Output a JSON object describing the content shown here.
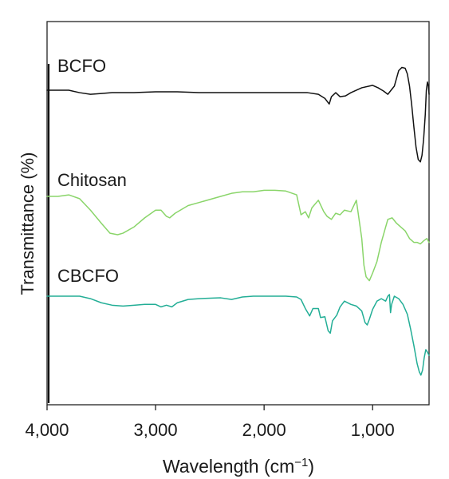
{
  "chart_data": {
    "type": "line",
    "title": "",
    "xlabel": "Wavelength (cm",
    "xlabel_superscript": "−1",
    "xlabel_suffix": ")",
    "ylabel": "Transmittance (%)",
    "x_reversed": true,
    "xlim": [
      4000,
      480
    ],
    "x_ticks": [
      4000,
      3000,
      2000,
      1000
    ],
    "x_tick_labels": [
      "4,000",
      "3,000",
      "2,000",
      "1,000"
    ],
    "y_ticks_shown": false,
    "grid": false,
    "legend": "inline labels",
    "series": [
      {
        "name": "BCFO",
        "color": "#111111",
        "points": [
          [
            4000,
            0.0
          ],
          [
            3900,
            0.0
          ],
          [
            3800,
            0.0
          ],
          [
            3700,
            0.3
          ],
          [
            3600,
            0.5
          ],
          [
            3500,
            0.4
          ],
          [
            3400,
            0.3
          ],
          [
            3200,
            0.3
          ],
          [
            3000,
            0.2
          ],
          [
            2800,
            0.2
          ],
          [
            2600,
            0.3
          ],
          [
            2400,
            0.3
          ],
          [
            2200,
            0.3
          ],
          [
            2000,
            0.3
          ],
          [
            1800,
            0.3
          ],
          [
            1700,
            0.3
          ],
          [
            1600,
            0.3
          ],
          [
            1500,
            0.5
          ],
          [
            1440,
            1.0
          ],
          [
            1400,
            1.7
          ],
          [
            1380,
            0.8
          ],
          [
            1340,
            0.3
          ],
          [
            1300,
            0.8
          ],
          [
            1250,
            0.7
          ],
          [
            1200,
            0.3
          ],
          [
            1100,
            -0.3
          ],
          [
            1000,
            -0.6
          ],
          [
            950,
            -0.3
          ],
          [
            900,
            0.1
          ],
          [
            860,
            0.5
          ],
          [
            800,
            -0.5
          ],
          [
            760,
            -2.4
          ],
          [
            730,
            -2.8
          ],
          [
            700,
            -2.7
          ],
          [
            680,
            -2.0
          ],
          [
            660,
            -0.5
          ],
          [
            640,
            1.8
          ],
          [
            620,
            4.5
          ],
          [
            600,
            7.0
          ],
          [
            580,
            8.5
          ],
          [
            560,
            8.8
          ],
          [
            545,
            8.0
          ],
          [
            530,
            6.0
          ],
          [
            515,
            3.0
          ],
          [
            505,
            0.0
          ],
          [
            495,
            -1.0
          ],
          [
            486,
            -0.5
          ],
          [
            480,
            0.5
          ]
        ]
      },
      {
        "name": "Chitosan",
        "color": "#8ad56a",
        "points": [
          [
            4000,
            0.0
          ],
          [
            3900,
            0.0
          ],
          [
            3800,
            -0.2
          ],
          [
            3700,
            0.3
          ],
          [
            3600,
            1.8
          ],
          [
            3500,
            3.5
          ],
          [
            3420,
            4.8
          ],
          [
            3350,
            5.0
          ],
          [
            3300,
            4.8
          ],
          [
            3200,
            4.0
          ],
          [
            3100,
            2.8
          ],
          [
            3000,
            1.8
          ],
          [
            2950,
            1.8
          ],
          [
            2900,
            2.6
          ],
          [
            2870,
            2.8
          ],
          [
            2820,
            2.2
          ],
          [
            2700,
            1.2
          ],
          [
            2600,
            0.8
          ],
          [
            2400,
            0.0
          ],
          [
            2300,
            -0.4
          ],
          [
            2200,
            -0.6
          ],
          [
            2100,
            -0.6
          ],
          [
            2000,
            -0.8
          ],
          [
            1900,
            -0.8
          ],
          [
            1800,
            -0.7
          ],
          [
            1700,
            -0.2
          ],
          [
            1660,
            2.4
          ],
          [
            1620,
            2.0
          ],
          [
            1590,
            2.8
          ],
          [
            1560,
            1.5
          ],
          [
            1500,
            0.5
          ],
          [
            1450,
            2.0
          ],
          [
            1420,
            2.6
          ],
          [
            1380,
            3.0
          ],
          [
            1340,
            2.2
          ],
          [
            1300,
            2.4
          ],
          [
            1260,
            1.8
          ],
          [
            1200,
            2.0
          ],
          [
            1150,
            0.5
          ],
          [
            1130,
            2.5
          ],
          [
            1100,
            5.5
          ],
          [
            1080,
            9.0
          ],
          [
            1060,
            10.5
          ],
          [
            1030,
            11.0
          ],
          [
            1000,
            10.0
          ],
          [
            960,
            8.5
          ],
          [
            920,
            6.0
          ],
          [
            890,
            4.5
          ],
          [
            860,
            3.0
          ],
          [
            820,
            2.8
          ],
          [
            780,
            3.5
          ],
          [
            740,
            4.0
          ],
          [
            700,
            4.5
          ],
          [
            660,
            5.5
          ],
          [
            620,
            6.0
          ],
          [
            590,
            6.0
          ],
          [
            560,
            6.2
          ],
          [
            530,
            5.8
          ],
          [
            500,
            5.5
          ],
          [
            480,
            6.0
          ]
        ]
      },
      {
        "name": "CBCFO",
        "color": "#23ae96",
        "points": [
          [
            4000,
            0.0
          ],
          [
            3900,
            0.0
          ],
          [
            3800,
            0.0
          ],
          [
            3700,
            0.0
          ],
          [
            3600,
            0.3
          ],
          [
            3500,
            0.8
          ],
          [
            3400,
            1.1
          ],
          [
            3300,
            1.2
          ],
          [
            3200,
            1.1
          ],
          [
            3100,
            1.0
          ],
          [
            3000,
            1.0
          ],
          [
            2950,
            1.3
          ],
          [
            2900,
            1.1
          ],
          [
            2850,
            1.3
          ],
          [
            2800,
            0.8
          ],
          [
            2700,
            0.4
          ],
          [
            2600,
            0.3
          ],
          [
            2400,
            0.2
          ],
          [
            2300,
            0.4
          ],
          [
            2200,
            0.1
          ],
          [
            2100,
            0.0
          ],
          [
            2000,
            0.0
          ],
          [
            1900,
            0.0
          ],
          [
            1800,
            0.0
          ],
          [
            1700,
            0.1
          ],
          [
            1660,
            0.4
          ],
          [
            1620,
            1.5
          ],
          [
            1580,
            2.4
          ],
          [
            1550,
            1.5
          ],
          [
            1500,
            1.5
          ],
          [
            1480,
            2.6
          ],
          [
            1440,
            2.5
          ],
          [
            1410,
            4.2
          ],
          [
            1390,
            4.5
          ],
          [
            1370,
            3.0
          ],
          [
            1330,
            2.3
          ],
          [
            1300,
            1.3
          ],
          [
            1260,
            0.6
          ],
          [
            1200,
            1.0
          ],
          [
            1150,
            1.2
          ],
          [
            1100,
            1.8
          ],
          [
            1070,
            3.2
          ],
          [
            1050,
            3.5
          ],
          [
            1030,
            2.8
          ],
          [
            1000,
            1.6
          ],
          [
            960,
            0.6
          ],
          [
            920,
            0.3
          ],
          [
            880,
            0.6
          ],
          [
            860,
            0.0
          ],
          [
            845,
            -0.2
          ],
          [
            835,
            2.0
          ],
          [
            825,
            1.0
          ],
          [
            800,
            0.0
          ],
          [
            760,
            0.3
          ],
          [
            720,
            1.0
          ],
          [
            680,
            2.2
          ],
          [
            650,
            4.0
          ],
          [
            620,
            6.0
          ],
          [
            590,
            8.2
          ],
          [
            570,
            9.2
          ],
          [
            555,
            9.6
          ],
          [
            540,
            9.0
          ],
          [
            525,
            7.5
          ],
          [
            510,
            6.5
          ],
          [
            495,
            6.8
          ],
          [
            480,
            7.2
          ]
        ]
      }
    ]
  }
}
